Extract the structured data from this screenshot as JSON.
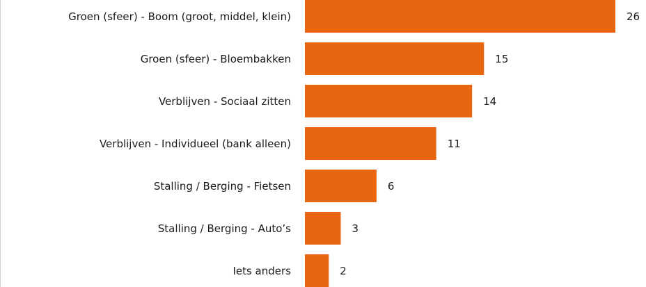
{
  "chart_data": {
    "type": "bar",
    "orientation": "horizontal",
    "categories": [
      "Groen (sfeer) - Boom (groot, middel, klein)",
      "Groen (sfeer) - Bloembakken",
      "Verblijven - Sociaal zitten",
      "Verblijven - Individueel (bank alleen)",
      "Stalling / Berging - Fietsen",
      "Stalling / Berging - Auto’s",
      "Iets anders"
    ],
    "values": [
      26,
      15,
      14,
      11,
      6,
      3,
      2
    ],
    "color": "#e8660f"
  }
}
